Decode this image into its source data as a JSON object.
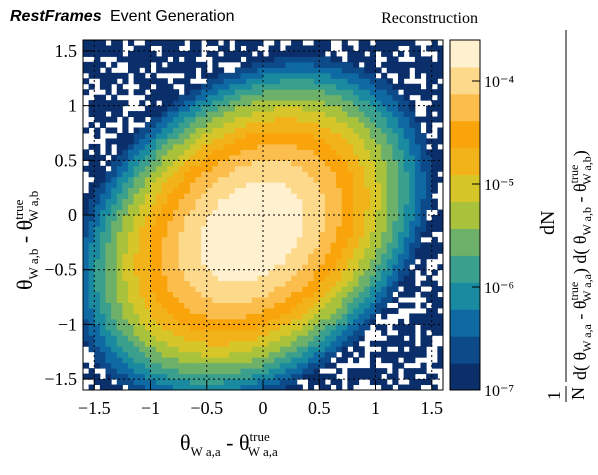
{
  "header": {
    "brand": "RestFrames",
    "subtitle": "Event Generation",
    "tag": "Reconstruction"
  },
  "chart_data": {
    "type": "heatmap",
    "x_axis": {
      "label_main": "θ",
      "label_sub": "W a,a",
      "label_minus": " - θ",
      "label_sup": "true",
      "label_sub2": "W a,a",
      "range": [
        -1.6,
        1.6
      ],
      "ticks": [
        "−1.5",
        "−1",
        "−0.5",
        "0",
        "0.5",
        "1",
        "1.5"
      ],
      "tick_values": [
        -1.5,
        -1,
        -0.5,
        0,
        0.5,
        1,
        1.5
      ]
    },
    "y_axis": {
      "label_main": "θ",
      "label_sub": "W a,b",
      "label_minus": " - θ",
      "label_sup": "true",
      "label_sub2": "W a,b",
      "range": [
        -1.6,
        1.6
      ],
      "ticks": [
        "−1.5",
        "−1",
        "−0.5",
        "0",
        "0.5",
        "1",
        "1.5"
      ],
      "tick_values": [
        -1.5,
        -1,
        -0.5,
        0,
        0.5,
        1,
        1.5
      ]
    },
    "z_axis": {
      "scale": "log",
      "range": [
        1e-07,
        0.00025
      ],
      "ticks": [
        "10⁻⁷",
        "10⁻⁶",
        "10⁻⁵",
        "10⁻⁴"
      ],
      "tick_values": [
        1e-07,
        1e-06,
        1e-05,
        0.0001
      ],
      "label_lead": "1",
      "label_N": "N",
      "label_dN": "dN",
      "label_den_a": "d( θ",
      "label_den_a_sub": "W a,a",
      "label_den_a_mid": " - θ",
      "label_den_a_sup": "true",
      "label_den_a_sub2": "W a,a",
      "label_den_b": ") d( θ",
      "label_den_b_sub": "W a,b",
      "label_den_b_mid": " - θ",
      "label_den_b_sup": "true",
      "label_den_b_sub2": "W a,b",
      "label_close": ")"
    },
    "peak": {
      "x": -0.1,
      "y": -0.15,
      "value": 0.00025
    },
    "grid": true,
    "palette": [
      "#0b2f6b",
      "#0d4a8a",
      "#0f6aa3",
      "#1a8aa0",
      "#3aa08d",
      "#6cb06a",
      "#a9c23c",
      "#d7c62a",
      "#f2b21a",
      "#f9a40a",
      "#fbbe4d",
      "#fdd98c",
      "#fff1cf"
    ]
  }
}
